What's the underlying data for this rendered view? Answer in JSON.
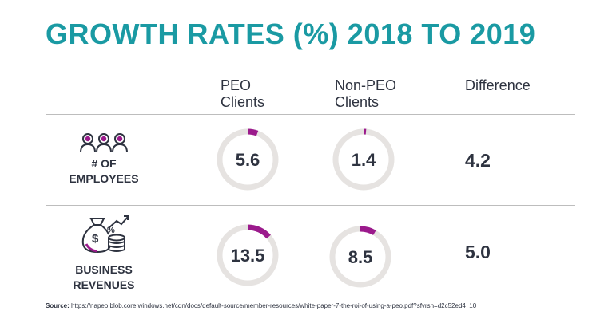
{
  "title": "GROWTH RATES (%) 2018 TO 2019",
  "columns": {
    "peo": [
      "PEO",
      "Clients"
    ],
    "nonpeo": [
      "Non-PEO",
      "Clients"
    ],
    "difference": "Difference"
  },
  "rows": {
    "employees": {
      "label": [
        "# OF",
        "EMPLOYEES"
      ],
      "icon": "people-icon"
    },
    "revenues": {
      "label": [
        "BUSINESS",
        "REVENUES"
      ],
      "icon": "money-bag-coins-icon"
    }
  },
  "colors": {
    "accent": "#1a9aa3",
    "track": "#e6e3e1",
    "progress": "#9b1a8c",
    "text": "#2e3340"
  },
  "chart_data": {
    "type": "donut-table",
    "title": "GROWTH RATES (%) 2018 TO 2019",
    "scale_max": 100,
    "categories": [
      "# OF EMPLOYEES",
      "BUSINESS REVENUES"
    ],
    "series": [
      {
        "name": "PEO Clients",
        "values": [
          5.6,
          13.5
        ]
      },
      {
        "name": "Non-PEO Clients",
        "values": [
          1.4,
          8.5
        ]
      }
    ],
    "difference": {
      "name": "Difference",
      "values": [
        "4.2",
        "5.0"
      ]
    },
    "value_labels": {
      "peo": [
        "5.6",
        "13.5"
      ],
      "nonpeo": [
        "1.4",
        "8.5"
      ]
    }
  },
  "source": {
    "label": "Source:",
    "text": "https://napeo.blob.core.windows.net/cdn/docs/default-source/member-resources/white-paper-7-the-roi-of-using-a-peo.pdf?sfvrsn=d2c52ed4_10"
  }
}
